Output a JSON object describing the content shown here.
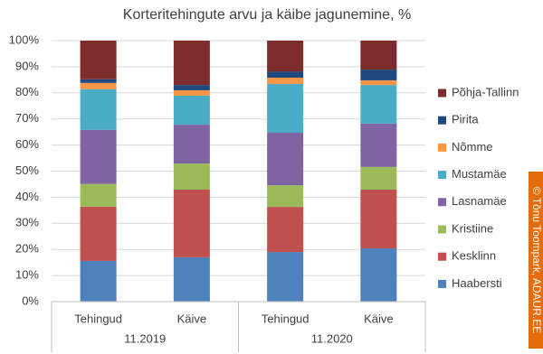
{
  "chart_data": {
    "type": "stacked-bar-100",
    "title": "Korteritehingute arvu ja käibe jagunemine, %",
    "categories": [
      "Tehingud",
      "Käive",
      "Tehingud",
      "Käive"
    ],
    "groups": [
      "11.2019",
      "11.2020"
    ],
    "credit": "© Tõnu Toompark, ADAUR.EE",
    "ylim": [
      0,
      100
    ],
    "yticks": [
      {
        "value": 0,
        "label": "0%"
      },
      {
        "value": 10,
        "label": "10%"
      },
      {
        "value": 20,
        "label": "20%"
      },
      {
        "value": 30,
        "label": "30%"
      },
      {
        "value": 40,
        "label": "40%"
      },
      {
        "value": 50,
        "label": "50%"
      },
      {
        "value": 60,
        "label": "60%"
      },
      {
        "value": 70,
        "label": "70%"
      },
      {
        "value": 80,
        "label": "80%"
      },
      {
        "value": 90,
        "label": "90%"
      },
      {
        "value": 100,
        "label": "100%"
      }
    ],
    "grid": true,
    "legend": "right",
    "series": [
      {
        "name": "Haabersti",
        "color": "#4f81bd",
        "values": [
          15.6,
          17,
          19,
          20.4
        ]
      },
      {
        "name": "Kesklinn",
        "color": "#c0504d",
        "values": [
          20.8,
          25.9,
          17.3,
          22.5
        ]
      },
      {
        "name": "Kristiine",
        "color": "#9bbb59",
        "values": [
          8.7,
          10,
          8.3,
          8.7
        ]
      },
      {
        "name": "Lasnamäe",
        "color": "#8064a2",
        "values": [
          20.7,
          14.9,
          20.1,
          16.6
        ]
      },
      {
        "name": "Mustamäe",
        "color": "#4bacc6",
        "values": [
          15.6,
          11.1,
          18.7,
          14.8
        ]
      },
      {
        "name": "Nõmme",
        "color": "#f79646",
        "values": [
          2.4,
          2.1,
          2.4,
          1.8
        ]
      },
      {
        "name": "Pirita",
        "color": "#1f497d",
        "values": [
          1.4,
          2,
          2.4,
          4.1
        ]
      },
      {
        "name": "Põhja-Tallinn",
        "color": "#7b2c2b",
        "values": [
          14.8,
          17,
          11.8,
          11.1
        ]
      }
    ]
  }
}
